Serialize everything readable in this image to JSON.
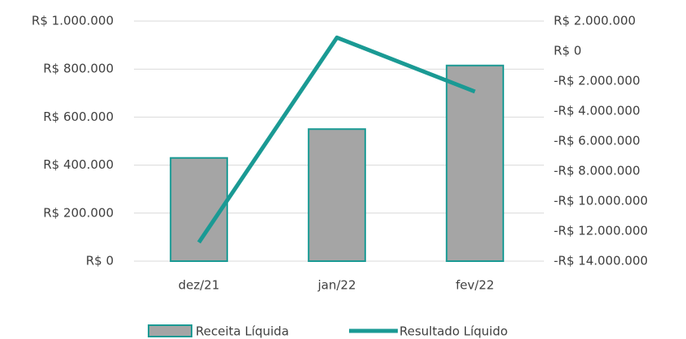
{
  "chart_data": {
    "type": "bar",
    "categories": [
      "dez/21",
      "jan/22",
      "fev/22"
    ],
    "series": [
      {
        "name": "Receita Líquida",
        "type": "bar",
        "color": "#a5a5a5",
        "edge_color": "#1a9a94",
        "values": [
          430000,
          550000,
          815000
        ]
      },
      {
        "name": "Resultado Líquido",
        "type": "line",
        "axis": "y2",
        "color": "#1a9a94",
        "values": [
          -12750000,
          900000,
          -2700000
        ]
      }
    ],
    "ylim": [
      0,
      1000000
    ],
    "yticks": [
      {
        "value": 0,
        "label": "R$ 0"
      },
      {
        "value": 200000,
        "label": "R$ 200.000"
      },
      {
        "value": 400000,
        "label": "R$ 400.000"
      },
      {
        "value": 600000,
        "label": "R$ 600.000"
      },
      {
        "value": 800000,
        "label": "R$ 800.000"
      },
      {
        "value": 1000000,
        "label": "R$ 1.000.000"
      }
    ],
    "y2lim": [
      -14000000,
      2000000
    ],
    "y2ticks": [
      {
        "value": -14000000,
        "label": "-R$ 14.000.000"
      },
      {
        "value": -12000000,
        "label": "-R$ 12.000.000"
      },
      {
        "value": -10000000,
        "label": "-R$ 10.000.000"
      },
      {
        "value": -8000000,
        "label": "-R$ 8.000.000"
      },
      {
        "value": -6000000,
        "label": "-R$ 6.000.000"
      },
      {
        "value": -4000000,
        "label": "-R$ 4.000.000"
      },
      {
        "value": -2000000,
        "label": "-R$ 2.000.000"
      },
      {
        "value": 0,
        "label": "R$ 0"
      },
      {
        "value": 2000000,
        "label": "R$ 2.000.000"
      }
    ],
    "grid": true,
    "legend": "bottom"
  }
}
